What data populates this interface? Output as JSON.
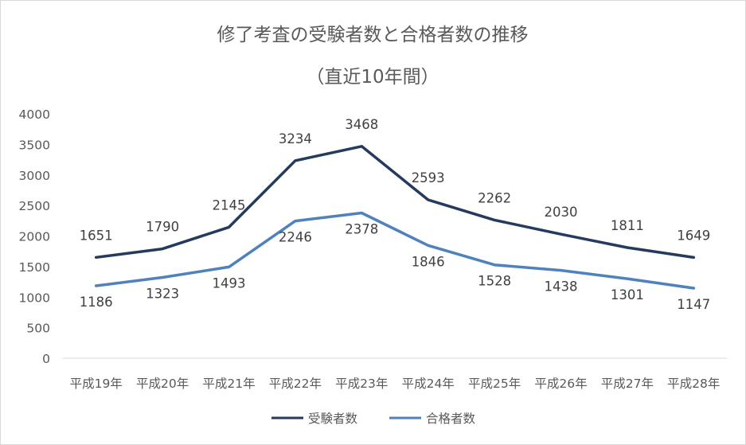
{
  "chart_data": {
    "type": "line",
    "title": "修了考査の受験者数と合格者数の推移",
    "subtitle": "（直近10年間）",
    "xlabel": "",
    "ylabel": "",
    "ylim": [
      0,
      4000
    ],
    "yticks": [
      0,
      500,
      1000,
      1500,
      2000,
      2500,
      3000,
      3500,
      4000
    ],
    "grid": false,
    "legend_position": "bottom",
    "categories": [
      "平成19年",
      "平成20年",
      "平成21年",
      "平成22年",
      "平成23年",
      "平成24年",
      "平成25年",
      "平成26年",
      "平成27年",
      "平成28年"
    ],
    "series": [
      {
        "name": "受験者数",
        "color": "#243a5e",
        "values": [
          1651,
          1790,
          2145,
          3234,
          3468,
          2593,
          2262,
          2030,
          1811,
          1649
        ]
      },
      {
        "name": "合格者数",
        "color": "#4f81bd",
        "values": [
          1186,
          1323,
          1493,
          2246,
          2378,
          1846,
          1528,
          1438,
          1301,
          1147
        ]
      }
    ]
  }
}
